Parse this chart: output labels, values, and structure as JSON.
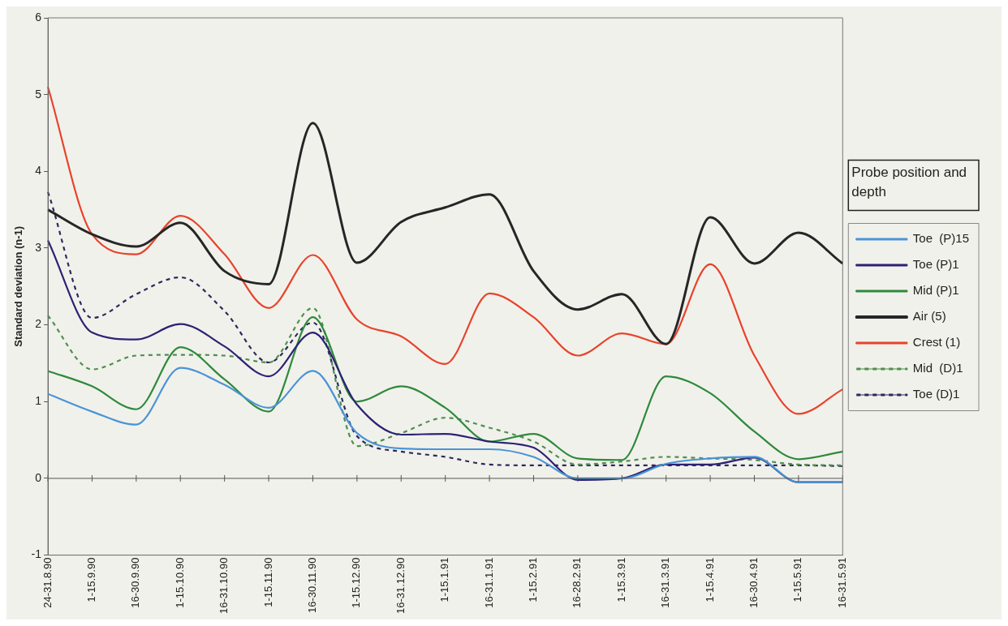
{
  "chart_data": {
    "type": "line",
    "ylabel": "Standard deviation (n-1)",
    "legend_title": "Probe position and depth",
    "legend": "right",
    "grid": false,
    "marker": "none",
    "categories": [
      "24-31.8.90",
      "1-15.9.90",
      "16-30.9.90",
      "1-15.10.90",
      "16-31.10.90",
      "1-15.11.90",
      "16-30.11.90",
      "1-15.12.90",
      "16-31.12.90",
      "1-15.1.91",
      "16-31.1.91",
      "1-15.2.91",
      "16-28.2.91",
      "1-15.3.91",
      "16-31.3.91",
      "1-15.4.91",
      "16-30.4.91",
      "1-15.5.91",
      "16-31.5.91"
    ],
    "ylim": [
      -1,
      6
    ],
    "yticks": [
      -1,
      0,
      1,
      2,
      3,
      4,
      5,
      6
    ],
    "ref_lines": [
      {
        "axis": "y",
        "value": 0,
        "color": "#555555"
      }
    ],
    "series": [
      {
        "name": "Toe  (P)15",
        "color": "#4a94d8",
        "line_style": "solid",
        "values": [
          1.1,
          0.87,
          0.7,
          1.44,
          1.22,
          0.92,
          1.4,
          0.59,
          0.39,
          0.38,
          0.38,
          0.28,
          0.0,
          0.0,
          0.19,
          0.26,
          0.28,
          -0.05,
          -0.05
        ]
      },
      {
        "name": "Toe (P)1",
        "color": "#2b2375",
        "line_style": "solid",
        "values": [
          3.1,
          1.9,
          1.81,
          2.01,
          1.72,
          1.33,
          1.9,
          0.96,
          0.57,
          0.58,
          0.48,
          0.4,
          -0.02,
          0.0,
          0.18,
          0.18,
          0.27,
          -0.05,
          -0.05
        ]
      },
      {
        "name": "Mid (P)1",
        "color": "#2e8a3c",
        "line_style": "solid",
        "values": [
          1.4,
          1.2,
          0.9,
          1.71,
          1.29,
          0.87,
          2.1,
          1.0,
          1.2,
          0.92,
          0.48,
          0.58,
          0.26,
          0.24,
          1.33,
          1.11,
          0.61,
          0.25,
          0.35
        ]
      },
      {
        "name": "Air (5)",
        "color": "#262626",
        "line_style": "solid",
        "values": [
          3.5,
          3.18,
          3.02,
          3.33,
          2.7,
          2.53,
          4.63,
          2.81,
          3.34,
          3.53,
          3.7,
          2.7,
          2.2,
          2.4,
          1.75,
          3.4,
          2.8,
          3.2,
          2.8
        ]
      },
      {
        "name": "Crest (1)",
        "color": "#e8432c",
        "line_style": "solid",
        "values": [
          5.1,
          3.18,
          2.92,
          3.42,
          2.92,
          2.22,
          2.91,
          2.07,
          1.85,
          1.49,
          2.41,
          2.1,
          1.6,
          1.89,
          1.75,
          2.79,
          1.6,
          0.84,
          1.16
        ]
      },
      {
        "name": "Mid  (D)1",
        "color": "#4f8f4f",
        "line_style": "dashed",
        "values": [
          2.12,
          1.42,
          1.6,
          1.61,
          1.6,
          1.51,
          2.22,
          0.42,
          0.59,
          0.79,
          0.66,
          0.48,
          0.18,
          0.22,
          0.28,
          0.26,
          0.24,
          0.18,
          0.17
        ]
      },
      {
        "name": "Toe (D)1",
        "color": "#2a2a5e",
        "line_style": "dashed",
        "values": [
          3.73,
          2.09,
          2.4,
          2.62,
          2.18,
          1.51,
          2.03,
          0.55,
          0.35,
          0.28,
          0.18,
          0.17,
          0.17,
          0.17,
          0.17,
          0.17,
          0.17,
          0.17,
          0.16
        ]
      }
    ]
  }
}
